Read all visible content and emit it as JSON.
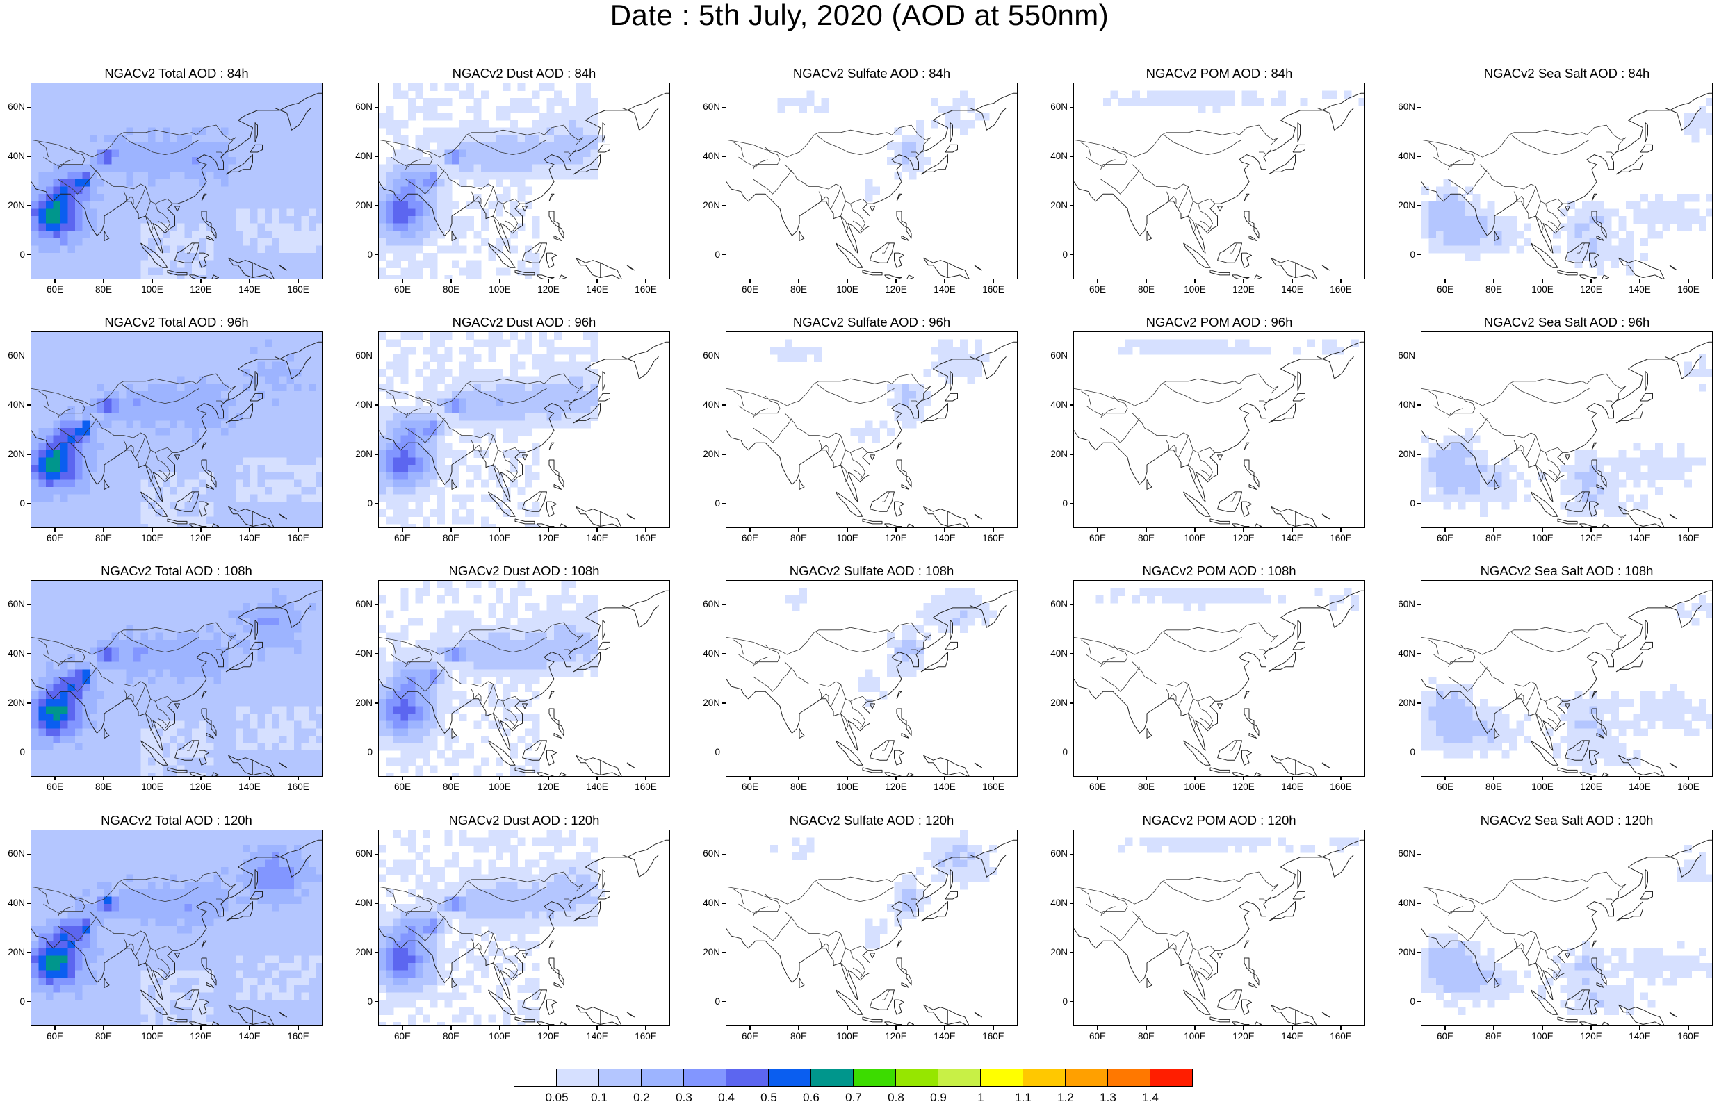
{
  "title": "Date : 5th July, 2020 (AOD at 550nm)",
  "y_ticks": [
    "60N",
    "40N",
    "20N",
    "0"
  ],
  "x_ticks": [
    "60E",
    "80E",
    "100E",
    "120E",
    "140E",
    "160E"
  ],
  "panels": [
    [
      {
        "title": "NGACv2 Total AOD : 84h",
        "field": "total"
      },
      {
        "title": "NGACv2 Dust AOD : 84h",
        "field": "dust"
      },
      {
        "title": "NGACv2 Sulfate AOD : 84h",
        "field": "sulfate"
      },
      {
        "title": "NGACv2 POM AOD : 84h",
        "field": "pom"
      },
      {
        "title": "NGACv2 Sea Salt AOD : 84h",
        "field": "seasalt"
      }
    ],
    [
      {
        "title": "NGACv2 Total AOD : 96h",
        "field": "total"
      },
      {
        "title": "NGACv2 Dust AOD : 96h",
        "field": "dust"
      },
      {
        "title": "NGACv2 Sulfate AOD : 96h",
        "field": "sulfate"
      },
      {
        "title": "NGACv2 POM AOD : 96h",
        "field": "pom"
      },
      {
        "title": "NGACv2 Sea Salt AOD : 96h",
        "field": "seasalt"
      }
    ],
    [
      {
        "title": "NGACv2 Total AOD : 108h",
        "field": "total"
      },
      {
        "title": "NGACv2 Dust AOD : 108h",
        "field": "dust"
      },
      {
        "title": "NGACv2 Sulfate AOD : 108h",
        "field": "sulfate"
      },
      {
        "title": "NGACv2 POM AOD : 108h",
        "field": "pom"
      },
      {
        "title": "NGACv2 Sea Salt AOD : 108h",
        "field": "seasalt"
      }
    ],
    [
      {
        "title": "NGACv2 Total AOD : 120h",
        "field": "total"
      },
      {
        "title": "NGACv2 Dust AOD : 120h",
        "field": "dust"
      },
      {
        "title": "NGACv2 Sulfate AOD : 120h",
        "field": "sulfate"
      },
      {
        "title": "NGACv2 POM AOD : 120h",
        "field": "pom"
      },
      {
        "title": "NGACv2 Sea Salt  AOD : 120h",
        "field": "seasalt"
      }
    ]
  ],
  "colorbar": {
    "colors": [
      "#ffffff",
      "#d6e0ff",
      "#b4c6ff",
      "#9db4ff",
      "#8296ff",
      "#5c66f0",
      "#0a5ef0",
      "#00968c",
      "#3cdc00",
      "#96e600",
      "#c8f046",
      "#ffff00",
      "#ffc800",
      "#ffa000",
      "#ff7800",
      "#ff1e00"
    ],
    "labels": [
      "0.05",
      "0.1",
      "0.2",
      "0.3",
      "0.4",
      "0.5",
      "0.6",
      "0.7",
      "0.8",
      "0.9",
      "1",
      "1.1",
      "1.2",
      "1.3",
      "1.4"
    ]
  }
}
